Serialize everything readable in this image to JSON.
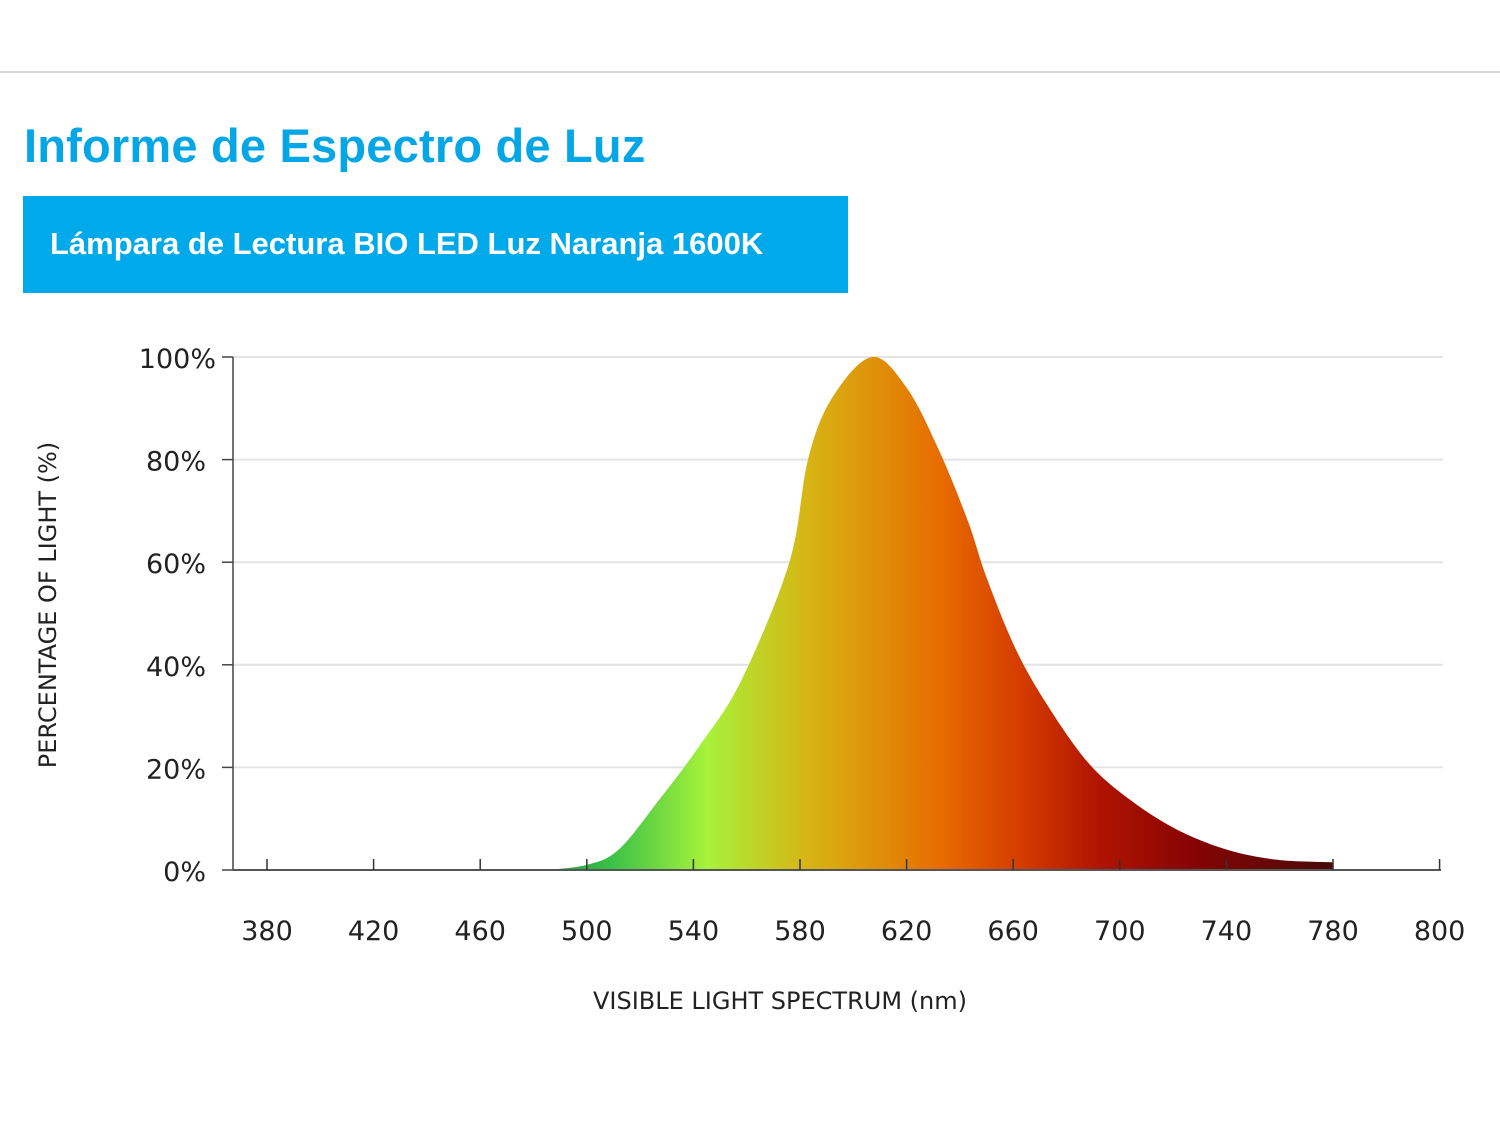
{
  "header": {
    "title": "Informe de Espectro de Luz",
    "product": "Lámpara de Lectura BIO LED Luz Naranja 1600K"
  },
  "colors": {
    "accent": "#00a9ea"
  },
  "chart_data": {
    "type": "area",
    "title": "",
    "xlabel": "VISIBLE LIGHT SPECTRUM (nm)",
    "ylabel": "PERCENTAGE OF LIGHT (%)",
    "x_ticks": [
      380,
      420,
      460,
      500,
      540,
      580,
      620,
      660,
      700,
      740,
      780,
      800
    ],
    "y_ticks": [
      "0%",
      "20%",
      "40%",
      "60%",
      "80%",
      "100%"
    ],
    "ylim": [
      0,
      100
    ],
    "grid": true,
    "fill": "spectral gradient (green to dark red)",
    "x": [
      485,
      500,
      512,
      527,
      542,
      558,
      576,
      583,
      592,
      607,
      620,
      632,
      643,
      650,
      661,
      673,
      688,
      703,
      721,
      740,
      759,
      780
    ],
    "y": [
      0,
      1,
      4,
      13.6,
      24,
      37,
      60,
      80,
      92,
      100,
      94,
      82,
      68,
      57,
      43,
      32,
      21,
      14,
      8,
      4,
      2,
      1.5
    ]
  }
}
